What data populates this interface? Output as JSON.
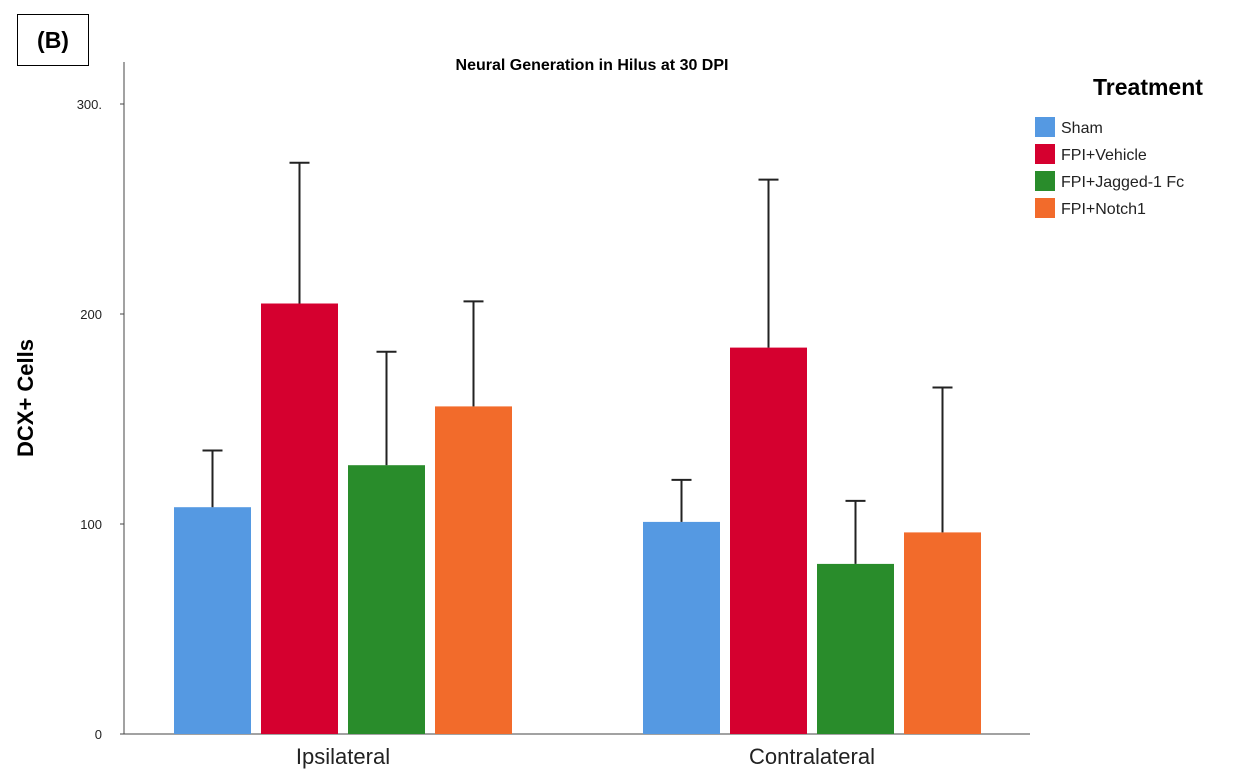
{
  "panel_label": "(B)",
  "chart_data": {
    "type": "bar",
    "title": "Neural Generation in Hilus at 30 DPI",
    "ylabel": "DCX+ Cells",
    "xlabel": "",
    "ylim": [
      0,
      320
    ],
    "yticks": [
      0,
      100,
      200,
      300
    ],
    "ytick_labels": [
      "0",
      "100",
      "200",
      "300."
    ],
    "categories": [
      "Ipsilateral",
      "Contralateral"
    ],
    "legend_title": "Treatment",
    "legend_position": "top-right",
    "grid": false,
    "error_bars": true,
    "series": [
      {
        "name": "Sham",
        "color": "#5599e2",
        "values": [
          108,
          101
        ],
        "errors": [
          27,
          20
        ]
      },
      {
        "name": "FPI+Vehicle",
        "color": "#d5002f",
        "values": [
          205,
          184
        ],
        "errors": [
          67,
          80
        ]
      },
      {
        "name": "FPI+Jagged-1 Fc",
        "color": "#298c2b",
        "values": [
          128,
          81
        ],
        "errors": [
          54,
          30
        ]
      },
      {
        "name": "FPI+Notch1",
        "color": "#f26b2b",
        "values": [
          156,
          96
        ],
        "errors": [
          50,
          69
        ]
      }
    ]
  }
}
